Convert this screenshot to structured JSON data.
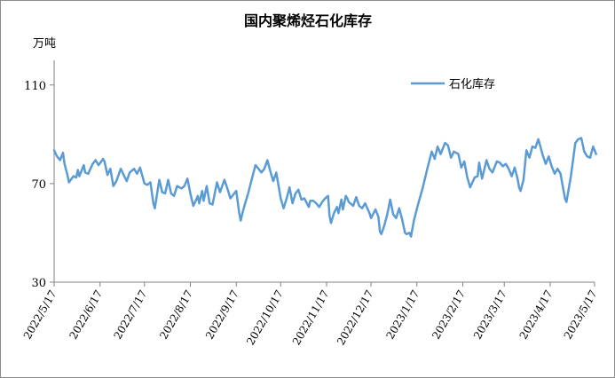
{
  "chart_data": {
    "type": "line",
    "title": "国内聚烯烃石化库存",
    "ylabel": "万吨",
    "xlabel": "",
    "ylim": [
      30,
      120
    ],
    "yticks": [
      30,
      70,
      110
    ],
    "grid": false,
    "legend_position": "top-right",
    "x_ticks": [
      "2022/5/17",
      "2022/6/17",
      "2022/7/17",
      "2022/8/17",
      "2022/9/17",
      "2022/10/17",
      "2022/11/17",
      "2022/12/17",
      "2023/1/17",
      "2023/2/17",
      "2023/3/17",
      "2023/4/17",
      "2023/5/17"
    ],
    "series": [
      {
        "name": "石化库存",
        "color": "#5b9bd5",
        "points": [
          [
            "2022/5/17",
            83.5
          ],
          [
            "2022/5/19",
            81
          ],
          [
            "2022/5/21",
            79.5
          ],
          [
            "2022/5/23",
            82.5
          ],
          [
            "2022/5/24",
            78
          ],
          [
            "2022/5/26",
            73.5
          ],
          [
            "2022/5/27",
            70.5
          ],
          [
            "2022/5/30",
            73
          ],
          [
            "2022/6/1",
            72.5
          ],
          [
            "2022/6/2",
            75.5
          ],
          [
            "2022/6/3",
            73
          ],
          [
            "2022/6/6",
            77.5
          ],
          [
            "2022/6/7",
            74.5
          ],
          [
            "2022/6/9",
            74
          ],
          [
            "2022/6/12",
            78
          ],
          [
            "2022/6/14",
            79.5
          ],
          [
            "2022/6/16",
            77.5
          ],
          [
            "2022/6/19",
            80
          ],
          [
            "2022/6/20",
            79
          ],
          [
            "2022/6/22",
            73.5
          ],
          [
            "2022/6/24",
            76
          ],
          [
            "2022/6/26",
            69
          ],
          [
            "2022/6/28",
            71
          ],
          [
            "2022/7/1",
            76
          ],
          [
            "2022/7/3",
            73.5
          ],
          [
            "2022/7/5",
            71
          ],
          [
            "2022/7/7",
            74.5
          ],
          [
            "2022/7/10",
            76
          ],
          [
            "2022/7/12",
            74
          ],
          [
            "2022/7/14",
            76.5
          ],
          [
            "2022/7/17",
            70
          ],
          [
            "2022/7/19",
            69.5
          ],
          [
            "2022/7/21",
            70.5
          ],
          [
            "2022/7/23",
            62
          ],
          [
            "2022/7/24",
            60
          ],
          [
            "2022/7/27",
            71.5
          ],
          [
            "2022/7/29",
            66.5
          ],
          [
            "2022/7/31",
            66
          ],
          [
            "2022/8/2",
            71.5
          ],
          [
            "2022/8/4",
            66
          ],
          [
            "2022/8/6",
            65
          ],
          [
            "2022/8/8",
            69
          ],
          [
            "2022/8/11",
            68
          ],
          [
            "2022/8/13",
            69
          ],
          [
            "2022/8/15",
            72
          ],
          [
            "2022/8/17",
            66
          ],
          [
            "2022/8/19",
            61
          ],
          [
            "2022/8/21",
            63.5
          ],
          [
            "2022/8/22",
            65
          ],
          [
            "2022/8/23",
            62
          ],
          [
            "2022/8/25",
            67
          ],
          [
            "2022/8/26",
            63
          ],
          [
            "2022/8/28",
            69
          ],
          [
            "2022/8/30",
            62
          ],
          [
            "2022/9/1",
            61.5
          ],
          [
            "2022/9/4",
            70.5
          ],
          [
            "2022/9/6",
            66.5
          ],
          [
            "2022/9/9",
            71.5
          ],
          [
            "2022/9/11",
            68
          ],
          [
            "2022/9/13",
            64
          ],
          [
            "2022/9/15",
            65.5
          ],
          [
            "2022/9/17",
            67
          ],
          [
            "2022/9/19",
            58
          ],
          [
            "2022/9/20",
            55
          ],
          [
            "2022/9/22",
            60
          ],
          [
            "2022/9/25",
            66
          ],
          [
            "2022/9/28",
            73
          ],
          [
            "2022/9/30",
            77.5
          ],
          [
            "2022/10/2",
            76
          ],
          [
            "2022/10/4",
            74.5
          ],
          [
            "2022/10/6",
            76
          ],
          [
            "2022/10/8",
            79.5
          ],
          [
            "2022/10/10",
            75
          ],
          [
            "2022/10/12",
            71
          ],
          [
            "2022/10/14",
            74.5
          ],
          [
            "2022/10/17",
            64
          ],
          [
            "2022/10/19",
            60
          ],
          [
            "2022/10/21",
            64
          ],
          [
            "2022/10/23",
            68.5
          ],
          [
            "2022/10/25",
            62
          ],
          [
            "2022/10/27",
            66
          ],
          [
            "2022/10/29",
            67.5
          ],
          [
            "2022/10/31",
            63.5
          ],
          [
            "2022/11/2",
            64
          ],
          [
            "2022/11/5",
            60.5
          ],
          [
            "2022/11/6",
            63
          ],
          [
            "2022/11/8",
            63
          ],
          [
            "2022/11/10",
            62
          ],
          [
            "2022/11/12",
            60.5
          ],
          [
            "2022/11/14",
            62.5
          ],
          [
            "2022/11/16",
            64
          ],
          [
            "2022/11/18",
            65
          ],
          [
            "2022/11/19",
            57
          ],
          [
            "2022/11/20",
            54
          ],
          [
            "2022/11/22",
            58
          ],
          [
            "2022/11/24",
            60.5
          ],
          [
            "2022/11/25",
            58
          ],
          [
            "2022/11/27",
            63.5
          ],
          [
            "2022/11/28",
            59.5
          ],
          [
            "2022/11/30",
            65
          ],
          [
            "2022/12/1",
            64
          ],
          [
            "2022/12/2",
            62.5
          ],
          [
            "2022/12/5",
            61
          ],
          [
            "2022/12/7",
            64.5
          ],
          [
            "2022/12/9",
            61
          ],
          [
            "2022/12/11",
            60
          ],
          [
            "2022/12/13",
            62
          ],
          [
            "2022/12/16",
            58
          ],
          [
            "2022/12/17",
            56
          ],
          [
            "2022/12/20",
            59.5
          ],
          [
            "2022/12/22",
            56.5
          ],
          [
            "2022/12/23",
            50.5
          ],
          [
            "2022/12/24",
            49.5
          ],
          [
            "2022/12/26",
            53
          ],
          [
            "2022/12/28",
            57.5
          ],
          [
            "2022/12/30",
            63.5
          ],
          [
            "2023/1/1",
            57.5
          ],
          [
            "2023/1/3",
            56
          ],
          [
            "2023/1/5",
            60
          ],
          [
            "2023/1/7",
            55.5
          ],
          [
            "2023/1/9",
            50
          ],
          [
            "2023/1/10",
            49.5
          ],
          [
            "2023/1/12",
            50
          ],
          [
            "2023/1/13",
            48.5
          ],
          [
            "2023/1/15",
            55
          ],
          [
            "2023/1/18",
            62
          ],
          [
            "2023/1/21",
            68.5
          ],
          [
            "2023/1/24",
            76
          ],
          [
            "2023/1/27",
            83
          ],
          [
            "2023/1/29",
            80
          ],
          [
            "2023/1/31",
            85
          ],
          [
            "2023/2/2",
            82
          ],
          [
            "2023/2/5",
            86.5
          ],
          [
            "2023/2/7",
            85.5
          ],
          [
            "2023/2/9",
            80.5
          ],
          [
            "2023/2/11",
            83
          ],
          [
            "2023/2/14",
            82
          ],
          [
            "2023/2/16",
            76.5
          ],
          [
            "2023/2/18",
            79
          ],
          [
            "2023/2/20",
            72.5
          ],
          [
            "2023/2/22",
            68.5
          ],
          [
            "2023/2/25",
            72.5
          ],
          [
            "2023/2/27",
            73
          ],
          [
            "2023/2/28",
            78.5
          ],
          [
            "2023/3/2",
            72
          ],
          [
            "2023/3/5",
            79.5
          ],
          [
            "2023/3/7",
            76
          ],
          [
            "2023/3/9",
            74.5
          ],
          [
            "2023/3/12",
            79
          ],
          [
            "2023/3/14",
            78.5
          ],
          [
            "2023/3/16",
            77
          ],
          [
            "2023/3/18",
            78
          ],
          [
            "2023/3/20",
            76
          ],
          [
            "2023/3/22",
            73
          ],
          [
            "2023/3/24",
            76.5
          ],
          [
            "2023/3/26",
            72
          ],
          [
            "2023/3/27",
            68.5
          ],
          [
            "2023/3/28",
            67
          ],
          [
            "2023/3/30",
            71.5
          ],
          [
            "2023/4/1",
            83.5
          ],
          [
            "2023/4/3",
            80.5
          ],
          [
            "2023/4/5",
            85
          ],
          [
            "2023/4/7",
            84.5
          ],
          [
            "2023/4/9",
            88
          ],
          [
            "2023/4/12",
            81.5
          ],
          [
            "2023/4/14",
            78
          ],
          [
            "2023/4/16",
            81
          ],
          [
            "2023/4/18",
            77
          ],
          [
            "2023/4/20",
            74
          ],
          [
            "2023/4/22",
            76
          ],
          [
            "2023/4/24",
            74
          ],
          [
            "2023/4/27",
            64
          ],
          [
            "2023/4/28",
            62.5
          ],
          [
            "2023/5/1",
            73
          ],
          [
            "2023/5/4",
            86.5
          ],
          [
            "2023/5/6",
            88
          ],
          [
            "2023/5/8",
            88.5
          ],
          [
            "2023/5/10",
            83
          ],
          [
            "2023/5/12",
            81
          ],
          [
            "2023/5/14",
            80.5
          ],
          [
            "2023/5/16",
            85
          ],
          [
            "2023/5/18",
            82
          ]
        ]
      }
    ]
  }
}
